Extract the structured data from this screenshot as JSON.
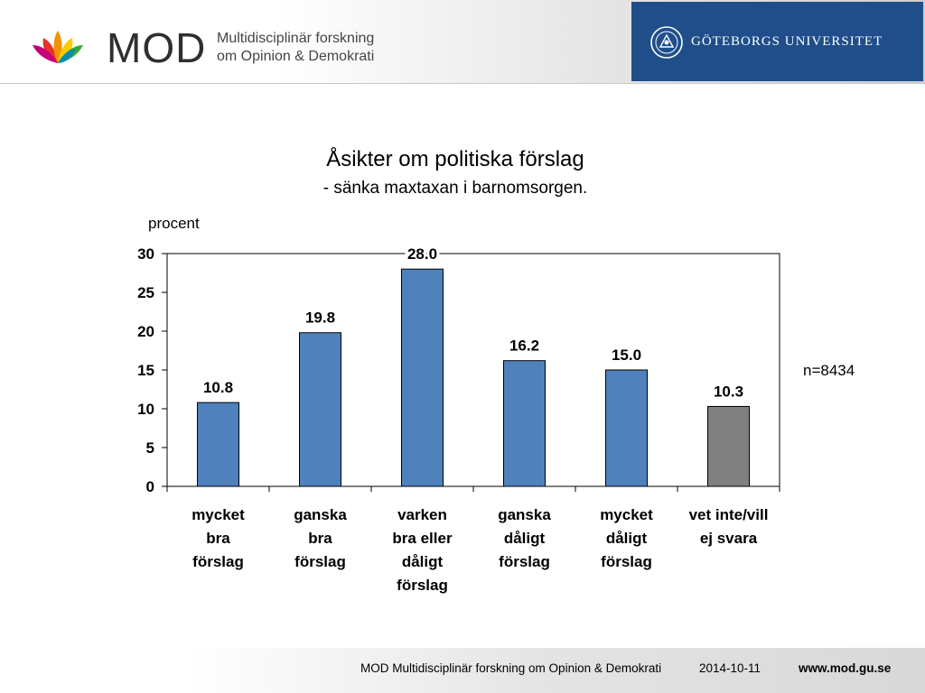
{
  "header": {
    "logo_text": "MOD",
    "org_line1": "Multidisciplinär forskning",
    "org_line2": "om Opinion & Demokrati",
    "university": "GÖTEBORGS UNIVERSITET"
  },
  "chart_data": {
    "type": "bar",
    "title": "Åsikter om politiska förslag",
    "subtitle": "- sänka maxtaxan i barnomsorgen.",
    "ylabel": "procent",
    "xlabel": "",
    "ylim": [
      0,
      30
    ],
    "yticks": [
      0,
      5,
      10,
      15,
      20,
      25,
      30
    ],
    "grid": false,
    "legend": "none",
    "annotation": "n=8434",
    "categories": [
      [
        "mycket",
        "bra",
        "förslag"
      ],
      [
        "ganska",
        "bra",
        "förslag"
      ],
      [
        "varken",
        "bra eller",
        "dåligt",
        "förslag"
      ],
      [
        "ganska",
        "dåligt",
        "förslag"
      ],
      [
        "mycket",
        "dåligt",
        "förslag"
      ],
      [
        "vet inte/vill",
        "ej svara"
      ]
    ],
    "values": [
      10.8,
      19.8,
      28.0,
      16.2,
      15.0,
      10.3
    ],
    "value_labels": [
      "10.8",
      "19.8",
      "28.0",
      "16.2",
      "15.0",
      "10.3"
    ],
    "colors": [
      "#4f81bd",
      "#4f81bd",
      "#4f81bd",
      "#4f81bd",
      "#4f81bd",
      "#808080"
    ]
  },
  "footer": {
    "org": "MOD Multidisciplinär forskning om Opinion & Demokrati",
    "date": "2014-10-11",
    "url": "www.mod.gu.se"
  }
}
